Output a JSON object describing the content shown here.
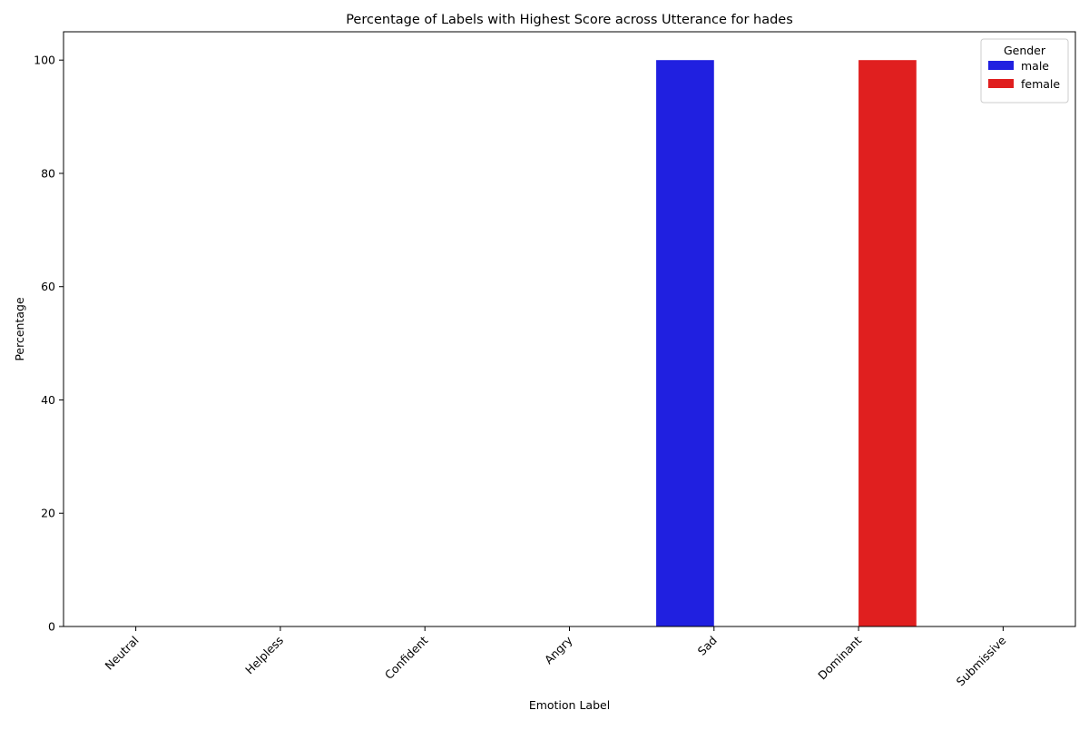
{
  "chart_data": {
    "type": "bar",
    "title": "Percentage of Labels with Highest Score across Utterance for hades",
    "xlabel": "Emotion Label",
    "ylabel": "Percentage",
    "categories": [
      "Neutral",
      "Helpless",
      "Confident",
      "Angry",
      "Sad",
      "Dominant",
      "Submissive"
    ],
    "series": [
      {
        "name": "male",
        "color": "#2020e0",
        "values": [
          0,
          0,
          0,
          0,
          100,
          0,
          0
        ]
      },
      {
        "name": "female",
        "color": "#e01f1f",
        "values": [
          0,
          0,
          0,
          0,
          0,
          100,
          0
        ]
      }
    ],
    "ylim": [
      0,
      105
    ],
    "yticks": [
      0,
      20,
      40,
      60,
      80,
      100
    ],
    "grid": false,
    "legend": {
      "title": "Gender",
      "placement": "top-right"
    }
  }
}
